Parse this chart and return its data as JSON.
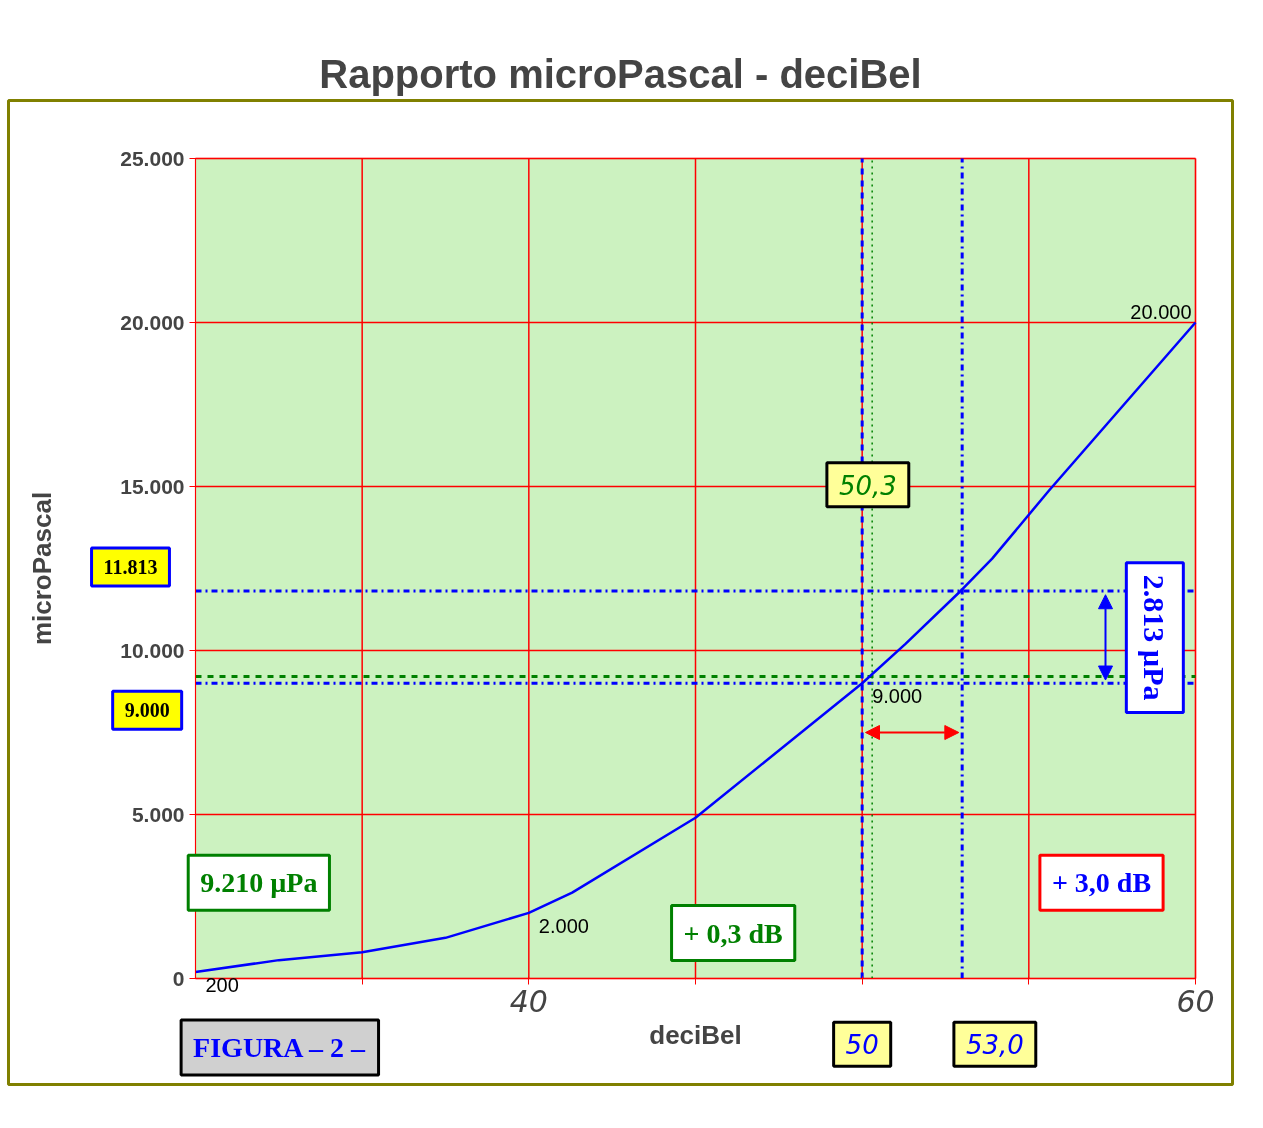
{
  "chart_data": {
    "type": "line",
    "title": "Rapporto microPascal - deciBel",
    "xlabel": "deciBel",
    "ylabel": "microPascal",
    "x": [
      30,
      32.5,
      35,
      37.5,
      40,
      41.3,
      45,
      50,
      51.3,
      53,
      53.9,
      55.6,
      60
    ],
    "series": [
      {
        "color": "#0000ff",
        "values": [
          200,
          560,
          800,
          1240,
          2000,
          2620,
          4900,
          9000,
          10200,
          11860,
          12800,
          14870,
          20000
        ],
        "value_labels": [
          "200",
          null,
          null,
          null,
          "2.000",
          null,
          null,
          "9.000",
          null,
          null,
          null,
          null,
          "20.000"
        ]
      }
    ],
    "xlim": [
      30,
      60
    ],
    "xticks": [
      {
        "value": 35,
        "label": null
      },
      {
        "value": 40,
        "label": "40"
      },
      {
        "value": 45,
        "label": null
      },
      {
        "value": 50,
        "label": null
      },
      {
        "value": 55,
        "label": null
      },
      {
        "value": 60,
        "label": "60"
      }
    ],
    "ylim": [
      0,
      25000
    ],
    "yticks": [
      {
        "value": 0,
        "label": "0"
      },
      {
        "value": 5000,
        "label": "5.000"
      },
      {
        "value": 10000,
        "label": "10.000"
      },
      {
        "value": 15000,
        "label": "15.000"
      },
      {
        "value": 20000,
        "label": "20.000"
      },
      {
        "value": 25000,
        "label": "25.000"
      }
    ],
    "grid": true,
    "line_style": "solid",
    "marker": "none",
    "ref_lines": [
      {
        "axis": "y",
        "value": 11813,
        "color": "#0000ff",
        "line_style": "dashdot"
      },
      {
        "axis": "y",
        "value": 9000,
        "color": "#0000ff",
        "line_style": "dashdot"
      },
      {
        "axis": "y",
        "value": 9210,
        "color": "#008000",
        "line_style": "dashed"
      },
      {
        "axis": "x",
        "value": 50,
        "color": "#0000ff",
        "line_style": "dashed"
      },
      {
        "axis": "x",
        "value": 53,
        "color": "#0000ff",
        "line_style": "dashdot"
      },
      {
        "axis": "x",
        "value": 50.3,
        "color": "#008000",
        "line_style": "dotted"
      }
    ],
    "annotations": [
      "50,3",
      "11.813",
      "9.000",
      "9.210 µPa",
      "+ 0,3 dB",
      "+ 3,0 dB",
      "2.813 µPa",
      "50",
      "53,0",
      "FIGURA – 2 –"
    ]
  }
}
